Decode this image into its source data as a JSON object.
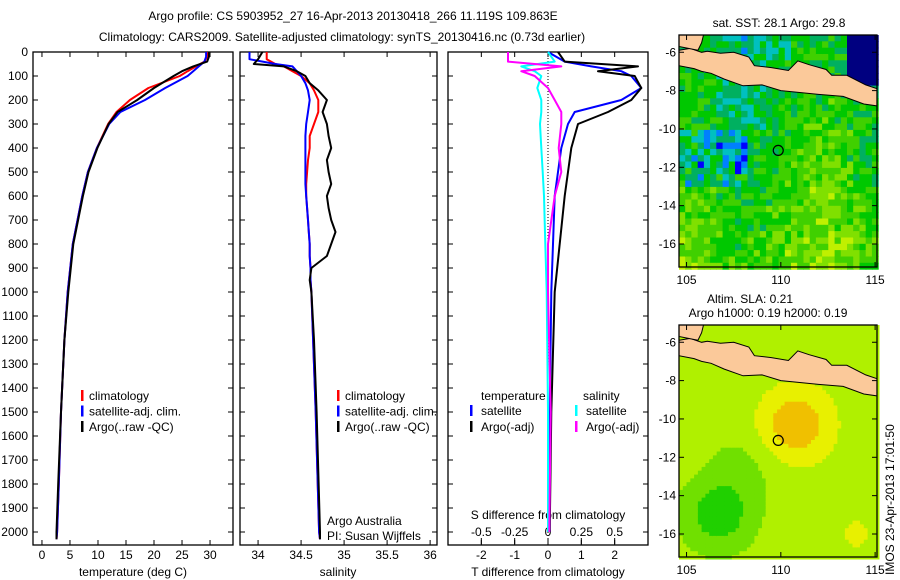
{
  "title": {
    "line1": "Argo profile: CS 5903952_27 16-Apr-2013 20130418_266 11.119S 109.863E",
    "line2": "Climatology: CARS2009. Satellite-adjusted climatology: synTS_20130416.nc (0.73d earlier)"
  },
  "colors": {
    "climatology": "#ff0000",
    "satellite": "#0000ff",
    "argo": "#000000",
    "sat_salinity": "#00ffff",
    "argo_salinity": "#ff00ff",
    "land": "#fbc99a"
  },
  "chart_data": [
    {
      "type": "line",
      "name": "temperature-profile",
      "xlabel": "temperature (deg C)",
      "ylabel": "",
      "xlim": [
        -1.6,
        34.1
      ],
      "ylim": [
        2135,
        0
      ],
      "xticks": [
        "0",
        "5",
        "10",
        "15",
        "20",
        "25",
        "30"
      ],
      "xtick_values": [
        0,
        5,
        10,
        15,
        20,
        25,
        30
      ],
      "yticks": [
        "0",
        "100",
        "200",
        "300",
        "400",
        "500",
        "600",
        "700",
        "800",
        "900",
        "1000",
        "1100",
        "1200",
        "1300",
        "1400",
        "1500",
        "1600",
        "1700",
        "1800",
        "1900",
        "2000"
      ],
      "depth": [
        0,
        20,
        40,
        60,
        80,
        100,
        150,
        200,
        250,
        300,
        400,
        500,
        600,
        800,
        1000,
        1200,
        1500,
        1800,
        2000,
        2030
      ],
      "series": [
        {
          "name": "climatology",
          "color": "#ff0000",
          "values": [
            29.5,
            29.5,
            29,
            27.5,
            26,
            24.6,
            19,
            15.7,
            13.3,
            11.8,
            9.8,
            8.2,
            7.2,
            5.5,
            4.6,
            4.0,
            3.4,
            3.0,
            2.7,
            2.6
          ]
        },
        {
          "name": "satellite-adj. clim.",
          "color": "#0000ff",
          "values": [
            29.3,
            29.3,
            29,
            28,
            27,
            26,
            22,
            18.4,
            14,
            12,
            9.8,
            8.2,
            7.2,
            5.5,
            4.6,
            4.0,
            3.4,
            3.0,
            2.7,
            2.6
          ]
        },
        {
          "name": "Argo(..raw -QC)",
          "color": "#000000",
          "values": [
            29.8,
            29.8,
            29.5,
            27,
            25,
            23.5,
            20,
            17,
            13.5,
            11.9,
            9.9,
            8.3,
            7.3,
            5.6,
            4.7,
            4.0,
            3.4,
            2.9,
            2.6,
            2.6
          ]
        }
      ]
    },
    {
      "type": "line",
      "name": "salinity-profile",
      "xlabel": "salinity",
      "xlim": [
        33.79,
        36.08
      ],
      "ylim": [
        2135,
        0
      ],
      "xticks": [
        "34",
        "34.5",
        "35",
        "35.5",
        "36"
      ],
      "xtick_values": [
        34,
        34.5,
        35,
        35.5,
        36
      ],
      "depth": [
        0,
        30,
        50,
        60,
        80,
        100,
        130,
        160,
        200,
        250,
        300,
        350,
        400,
        450,
        500,
        550,
        600,
        650,
        700,
        750,
        800,
        850,
        900,
        950,
        1000,
        1200,
        1500,
        2000,
        2030
      ],
      "series": [
        {
          "name": "climatology",
          "color": "#ff0000",
          "values": [
            34.1,
            34.1,
            34.2,
            34.3,
            34.4,
            34.5,
            34.6,
            34.65,
            34.7,
            34.7,
            34.65,
            34.6,
            34.6,
            34.58,
            34.57,
            34.56,
            34.56,
            34.57,
            34.58,
            34.59,
            34.6,
            34.6,
            34.61,
            34.61,
            34.62,
            34.64,
            34.67,
            34.71,
            34.72
          ]
        },
        {
          "name": "satellite-adj. clim.",
          "color": "#0000ff",
          "values": [
            33.9,
            33.9,
            34.2,
            34.4,
            34.45,
            34.5,
            34.55,
            34.58,
            34.6,
            34.58,
            34.56,
            34.55,
            34.55,
            34.55,
            34.55,
            34.55,
            34.56,
            34.57,
            34.58,
            34.59,
            34.6,
            34.6,
            34.61,
            34.61,
            34.62,
            34.64,
            34.67,
            34.71,
            34.72
          ]
        },
        {
          "name": "Argo(..raw -QC)",
          "color": "#000000",
          "values": [
            34.05,
            34.0,
            33.95,
            34.3,
            34.45,
            34.55,
            34.6,
            34.7,
            34.8,
            34.75,
            34.8,
            34.82,
            34.85,
            34.8,
            34.82,
            34.85,
            34.8,
            34.82,
            34.85,
            34.9,
            34.85,
            34.8,
            34.62,
            34.6,
            34.62,
            34.65,
            34.68,
            34.72,
            34.72
          ]
        }
      ],
      "annotation": [
        "Argo Australia",
        "PI: Susan Wijffels"
      ]
    },
    {
      "type": "line",
      "name": "difference-profile",
      "xlabel": "T difference from climatology",
      "x2label": "S difference from climatology",
      "xlim": [
        -3,
        3
      ],
      "x2lim": [
        -0.75,
        0.75
      ],
      "ylim": [
        2135,
        0
      ],
      "xticks": [
        "-2",
        "-1",
        "0",
        "1",
        "2"
      ],
      "xtick_values": [
        -2,
        -1,
        0,
        1,
        2
      ],
      "x2ticks": [
        "-0.5",
        "-0.25",
        "0",
        "0.25",
        "0.5"
      ],
      "x2tick_values": [
        -0.5,
        -0.25,
        0,
        0.25,
        0.5
      ],
      "legend_headers": [
        "temperature",
        "salinity"
      ],
      "depth": [
        0,
        40,
        60,
        80,
        100,
        150,
        200,
        250,
        300,
        400,
        500,
        600,
        800,
        1000,
        1500,
        2000
      ],
      "series": [
        {
          "name": "satellite",
          "group": "temperature",
          "axis": "T",
          "color": "#0000ff",
          "values": [
            0,
            0.5,
            1.3,
            2.2,
            2.5,
            2.8,
            2.2,
            0.8,
            0.6,
            0.4,
            0.3,
            0.2,
            0.15,
            0.1,
            0.05,
            0.05
          ]
        },
        {
          "name": "Argo(-adj)",
          "group": "temperature",
          "axis": "T",
          "color": "#000000",
          "values": [
            0.3,
            0.5,
            2.7,
            1.5,
            2.6,
            2.8,
            2.5,
            1.8,
            0.9,
            0.7,
            0.6,
            0.5,
            0.35,
            0.2,
            0.1,
            0.05
          ]
        },
        {
          "name": "satellite",
          "group": "salinity",
          "axis": "S",
          "color": "#00ffff",
          "values": [
            0,
            0.05,
            -0.2,
            -0.1,
            -0.05,
            -0.08,
            -0.05,
            -0.05,
            -0.06,
            -0.05,
            -0.04,
            -0.03,
            -0.02,
            -0.01,
            0,
            0
          ]
        },
        {
          "name": "Argo(-adj)",
          "group": "salinity",
          "axis": "S",
          "color": "#ff00ff",
          "values": [
            -0.3,
            -0.3,
            0.1,
            -0.2,
            -0.1,
            0,
            0.05,
            0.1,
            0.1,
            0.08,
            0.1,
            0.05,
            0,
            0,
            0.02,
            0.01
          ]
        }
      ]
    },
    {
      "type": "heatmap",
      "name": "sst-map",
      "title": "sat. SST: 28.1  Argo: 29.8",
      "xlim": [
        104.6,
        115.1
      ],
      "ylim": [
        -17.2,
        -5.1
      ],
      "xticks": [
        "105",
        "110",
        "115"
      ],
      "xtick_values": [
        105,
        110,
        115
      ],
      "yticks": [
        "-6",
        "-8",
        "-10",
        "-12",
        "-14",
        "-16"
      ],
      "ytick_values": [
        -6,
        -8,
        -10,
        -12,
        -14,
        -16
      ],
      "marker": {
        "lon": 109.863,
        "lat": -11.119
      }
    },
    {
      "type": "heatmap",
      "name": "sla-map",
      "title": "Altim. SLA: 0.21",
      "subtitle": "Argo h1000: 0.19 h2000: 0.19",
      "xlim": [
        104.6,
        115.1
      ],
      "ylim": [
        -17.2,
        -5.1
      ],
      "xticks": [
        "105",
        "110",
        "115"
      ],
      "xtick_values": [
        105,
        110,
        115
      ],
      "yticks": [
        "-6",
        "-8",
        "-10",
        "-12",
        "-14",
        "-16"
      ],
      "ytick_values": [
        -6,
        -8,
        -10,
        -12,
        -14,
        -16
      ],
      "marker": {
        "lon": 109.863,
        "lat": -11.119
      }
    }
  ],
  "footer": {
    "stamp": "IMOS 23-Apr-2013 17:01:50"
  }
}
